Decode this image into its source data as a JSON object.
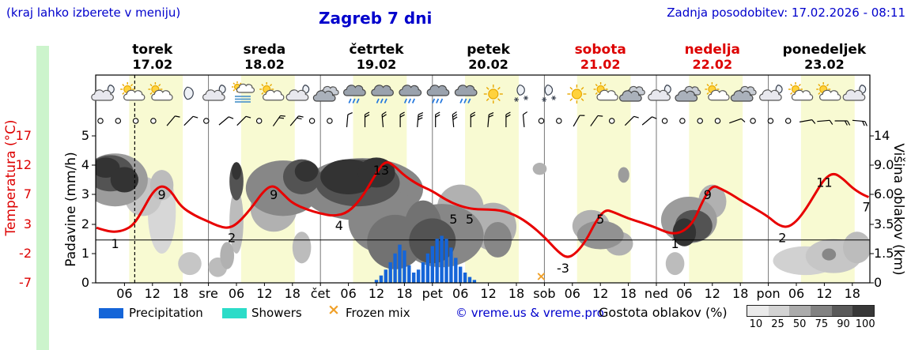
{
  "colors": {
    "blue_text": "#0000cc",
    "red": "#dd0000",
    "curve_red": "#e80000",
    "precip_blue": "#1565d8",
    "showers_cyan": "#2bdcc8",
    "frozen_orange": "#f0a028",
    "day_band": "#f8fad2",
    "green_strip": "#ccf4cc"
  },
  "header": {
    "hint": "(kraj lahko izberete v meniju)",
    "title": "Zagreb 7 dni",
    "updated": "Zadnja posodobitev: 17.02.2026 - 08:11"
  },
  "axes": {
    "temp_title": "Temperatura (°C)",
    "precip_title": "Padavine (mm/h)",
    "cloud_title": "Višina oblakov (km)",
    "temp_ticks": [
      "17",
      "12",
      "7",
      "3",
      "-2",
      "-7"
    ],
    "precip_ticks": [
      "5",
      "4",
      "3",
      "2",
      "1",
      "0"
    ],
    "cloud_ticks": [
      "14",
      "9.0",
      "6.0",
      "3.5",
      "1.5",
      "0"
    ]
  },
  "legend": {
    "precipitation": "Precipitation",
    "showers": "Showers",
    "frozen_mix": "Frozen mix",
    "frozen_symbol": "×",
    "copyright": "© vreme.us & vreme.pro",
    "cloud_density_title": "Gostota oblakov (%)",
    "density_steps": [
      {
        "label": "10",
        "color": "#eaeaea"
      },
      {
        "label": "25",
        "color": "#d3d3d3"
      },
      {
        "label": "50",
        "color": "#ababab"
      },
      {
        "label": "75",
        "color": "#828282"
      },
      {
        "label": "90",
        "color": "#5a5a5a"
      },
      {
        "label": "100",
        "color": "#383838"
      }
    ]
  },
  "chart_data": {
    "type": "meteogram",
    "title": "Zagreb 7 dni",
    "days": [
      {
        "name": "torek",
        "date": "17.02",
        "red": false
      },
      {
        "name": "sreda",
        "date": "18.02",
        "red": false
      },
      {
        "name": "četrtek",
        "date": "19.02",
        "red": false
      },
      {
        "name": "petek",
        "date": "20.02",
        "red": false
      },
      {
        "name": "sobota",
        "date": "21.02",
        "red": true
      },
      {
        "name": "nedelja",
        "date": "22.02",
        "red": true
      },
      {
        "name": "ponedeljek",
        "date": "23.02",
        "red": false
      }
    ],
    "time_ticks": [
      [
        6,
        "06"
      ],
      [
        12,
        "12"
      ],
      [
        18,
        "18"
      ],
      [
        24,
        "sre"
      ],
      [
        30,
        "06"
      ],
      [
        36,
        "12"
      ],
      [
        42,
        "18"
      ],
      [
        48,
        "čet"
      ],
      [
        54,
        "06"
      ],
      [
        60,
        "12"
      ],
      [
        66,
        "18"
      ],
      [
        72,
        "pet"
      ],
      [
        78,
        "06"
      ],
      [
        84,
        "12"
      ],
      [
        90,
        "18"
      ],
      [
        96,
        "sob"
      ],
      [
        102,
        "06"
      ],
      [
        108,
        "12"
      ],
      [
        114,
        "18"
      ],
      [
        120,
        "ned"
      ],
      [
        126,
        "06"
      ],
      [
        132,
        "12"
      ],
      [
        138,
        "18"
      ],
      [
        144,
        "pon"
      ],
      [
        150,
        "06"
      ],
      [
        156,
        "12"
      ],
      [
        162,
        "18"
      ]
    ],
    "now_hour": 8.2,
    "zero_degree_line": true,
    "temp_series": [
      [
        0,
        2
      ],
      [
        2,
        1.5
      ],
      [
        4,
        1.3
      ],
      [
        6,
        1.6
      ],
      [
        8,
        2.5
      ],
      [
        10,
        5
      ],
      [
        12,
        7.8
      ],
      [
        14,
        9
      ],
      [
        16,
        8
      ],
      [
        18,
        5.5
      ],
      [
        21,
        4
      ],
      [
        24,
        3
      ],
      [
        26,
        2.3
      ],
      [
        28,
        1.9
      ],
      [
        30,
        2.5
      ],
      [
        33,
        5
      ],
      [
        36,
        8.2
      ],
      [
        38,
        9
      ],
      [
        40,
        7.5
      ],
      [
        42,
        6
      ],
      [
        45,
        5
      ],
      [
        48,
        4.3
      ],
      [
        51,
        3.9
      ],
      [
        54,
        4.5
      ],
      [
        57,
        7
      ],
      [
        60,
        11
      ],
      [
        62,
        13
      ],
      [
        64,
        12
      ],
      [
        66,
        10.5
      ],
      [
        69,
        9
      ],
      [
        72,
        8
      ],
      [
        75,
        6.5
      ],
      [
        78,
        5.5
      ],
      [
        81,
        5
      ],
      [
        84,
        5
      ],
      [
        87,
        4.8
      ],
      [
        90,
        4
      ],
      [
        93,
        2.5
      ],
      [
        96,
        0.5
      ],
      [
        99,
        -2
      ],
      [
        101,
        -3
      ],
      [
        103,
        -2
      ],
      [
        105,
        0
      ],
      [
        107,
        3
      ],
      [
        109,
        5
      ],
      [
        111,
        4.5
      ],
      [
        114,
        3.5
      ],
      [
        117,
        2.8
      ],
      [
        120,
        2
      ],
      [
        122,
        1.3
      ],
      [
        124,
        1
      ],
      [
        126,
        1.5
      ],
      [
        128,
        3
      ],
      [
        130,
        6.5
      ],
      [
        132,
        9
      ],
      [
        134,
        8.3
      ],
      [
        136,
        7.5
      ],
      [
        138,
        6.5
      ],
      [
        141,
        5.2
      ],
      [
        144,
        3.8
      ],
      [
        146,
        2.5
      ],
      [
        148,
        2
      ],
      [
        150,
        3
      ],
      [
        152,
        5
      ],
      [
        154,
        7.5
      ],
      [
        156,
        10
      ],
      [
        158,
        11
      ],
      [
        160,
        10
      ],
      [
        162,
        8.5
      ],
      [
        164,
        7.5
      ],
      [
        165.5,
        7
      ]
    ],
    "temp_labels": [
      [
        4,
        1
      ],
      [
        14,
        9
      ],
      [
        29,
        2
      ],
      [
        38,
        9
      ],
      [
        52,
        4
      ],
      [
        61,
        13
      ],
      [
        76.5,
        5
      ],
      [
        80,
        5
      ],
      [
        100,
        -3
      ],
      [
        108,
        5
      ],
      [
        124,
        1
      ],
      [
        131,
        9
      ],
      [
        147,
        2
      ],
      [
        156,
        11
      ],
      [
        165,
        7
      ]
    ],
    "precip_bars": [
      [
        60,
        0.1
      ],
      [
        61,
        0.25
      ],
      [
        62,
        0.45
      ],
      [
        63,
        0.7
      ],
      [
        64,
        1.0
      ],
      [
        65,
        1.3
      ],
      [
        66,
        1.1
      ],
      [
        67,
        0.6
      ],
      [
        68,
        0.35
      ],
      [
        69,
        0.45
      ],
      [
        70,
        0.7
      ],
      [
        71,
        1.0
      ],
      [
        72,
        1.25
      ],
      [
        73,
        1.5
      ],
      [
        74,
        1.6
      ],
      [
        75,
        1.5
      ],
      [
        76,
        1.2
      ],
      [
        77,
        0.85
      ],
      [
        78,
        0.55
      ],
      [
        79,
        0.35
      ],
      [
        80,
        0.2
      ],
      [
        81,
        0.1
      ]
    ],
    "frozen_mix_hours": [
      95.3
    ],
    "clouds": [
      [
        3,
        8.5,
        5,
        2.2,
        75
      ],
      [
        2,
        9,
        3,
        1.3,
        90
      ],
      [
        6,
        7.5,
        3,
        1.3,
        90
      ],
      [
        4,
        8,
        7,
        3,
        40
      ],
      [
        10,
        6,
        4,
        1.8,
        20
      ],
      [
        14,
        5,
        3,
        3.5,
        12
      ],
      [
        14,
        7,
        2.5,
        1.5,
        25
      ],
      [
        20,
        1,
        2.5,
        0.6,
        20
      ],
      [
        26,
        0.8,
        2,
        0.5,
        25
      ],
      [
        28,
        1.5,
        1.5,
        0.8,
        30
      ],
      [
        30,
        7.5,
        1.5,
        2,
        75
      ],
      [
        30,
        8.5,
        1,
        1,
        90
      ],
      [
        30,
        4,
        1.5,
        2.5,
        25
      ],
      [
        40,
        7,
        8,
        2.8,
        50
      ],
      [
        44,
        8,
        4,
        2,
        75
      ],
      [
        45,
        8.5,
        2.5,
        1.2,
        90
      ],
      [
        38,
        5,
        5,
        2,
        30
      ],
      [
        44,
        2,
        2,
        1,
        25
      ],
      [
        57,
        7,
        13,
        3.2,
        50
      ],
      [
        56,
        7.5,
        9,
        2.5,
        75
      ],
      [
        54,
        8,
        6,
        2,
        90
      ],
      [
        60,
        8.5,
        4,
        1.8,
        90
      ],
      [
        62,
        4,
        8,
        2.5,
        50
      ],
      [
        64,
        2.5,
        6,
        1.8,
        60
      ],
      [
        74,
        3,
        9,
        2.2,
        50
      ],
      [
        72,
        2.5,
        5,
        1.5,
        75
      ],
      [
        70,
        3.5,
        4,
        2,
        60
      ],
      [
        78,
        5,
        5,
        2,
        30
      ],
      [
        85,
        3.5,
        5,
        1.8,
        30
      ],
      [
        86,
        2.5,
        3,
        1.2,
        50
      ],
      [
        95,
        8.7,
        1.5,
        0.7,
        30
      ],
      [
        106,
        3.5,
        4,
        1.2,
        30
      ],
      [
        108,
        2.8,
        5,
        1,
        45
      ],
      [
        112,
        2.2,
        3,
        0.8,
        30
      ],
      [
        113,
        8,
        1.2,
        0.8,
        40
      ],
      [
        127,
        4,
        6,
        1.8,
        40
      ],
      [
        128,
        3.5,
        4,
        1.2,
        75
      ],
      [
        126,
        3,
        2.5,
        1,
        90
      ],
      [
        132,
        5.5,
        3,
        1.5,
        30
      ],
      [
        124,
        1,
        2,
        0.6,
        25
      ],
      [
        152,
        1.2,
        7,
        0.8,
        15
      ],
      [
        158,
        1.5,
        6,
        1,
        20
      ],
      [
        163,
        2,
        3,
        1,
        25
      ],
      [
        157,
        1.5,
        1.5,
        0.35,
        50
      ]
    ],
    "icons": [
      "moon-cloud",
      "sun-cloud",
      "sun-cloud",
      "moon",
      "moon-cloud",
      "fog-sun",
      "sun-cloud",
      "moon-cloud",
      "gray-cloud",
      "rain",
      "rain",
      "rain",
      "rain",
      "rain",
      "sun",
      "moon-snow",
      "moon-snow",
      "sun",
      "sun-cloud",
      "gray-cloud",
      "moon-cloud",
      "gray-cloud",
      "sun-cloud",
      "gray-cloud",
      "moon-cloud",
      "sun-cloud",
      "sun-cloud",
      "moon-cloud"
    ],
    "wind": [
      "o",
      "o",
      "o",
      "o",
      [
        40,
        1
      ],
      [
        45,
        1
      ],
      "o",
      [
        50,
        1
      ],
      [
        45,
        1
      ],
      "o",
      [
        35,
        2
      ],
      [
        40,
        2
      ],
      "o",
      "o",
      [
        5,
        1
      ],
      [
        0,
        2
      ],
      [
        -5,
        2
      ],
      [
        0,
        2
      ],
      [
        5,
        3
      ],
      [
        0,
        2
      ],
      [
        -5,
        3
      ],
      [
        0,
        2
      ],
      [
        5,
        2
      ],
      [
        0,
        2
      ],
      [
        -5,
        1
      ],
      "o",
      "o",
      [
        30,
        1
      ],
      [
        35,
        1
      ],
      "o",
      [
        45,
        1
      ],
      [
        50,
        1
      ],
      "o",
      "o",
      "o",
      "o",
      [
        70,
        1
      ],
      "o",
      "o",
      "o",
      [
        80,
        1
      ],
      [
        85,
        1
      ],
      [
        90,
        2
      ],
      [
        95,
        2
      ]
    ]
  }
}
